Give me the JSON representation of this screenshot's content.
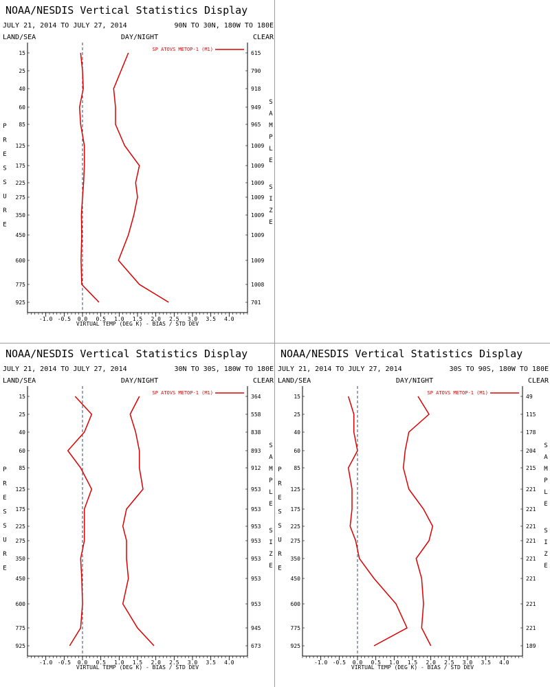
{
  "colors": {
    "series": "#dd0000",
    "axis": "#000000",
    "zero_line": "#3a4a66",
    "divider": "#9a9a9a"
  },
  "chart_data": [
    {
      "type": "line",
      "title": "NOAA/NESDIS Vertical Statistics Display",
      "date_range": "JULY 21, 2014 TO JULY 27, 2014",
      "region": "90N TO 30N, 180W TO 180E",
      "land_sea": "LAND/SEA",
      "day_night": "DAY/NIGHT",
      "clear": "CLEAR",
      "xlabel": "VIRTUAL TEMP (DEG K) - BIAS / STD DEV",
      "ylabel": "PRESSURE",
      "y2label": "SAMPLE SIZE",
      "legend": "SP ATOVS METOP-1 (M1)",
      "xlim": [
        -1.5,
        4.5
      ],
      "x_ticks": [
        "-1.0",
        "-0.5",
        "0.0",
        "0.5",
        "1.0",
        "1.5",
        "2.0",
        "2.5",
        "3.0",
        "3.5",
        "4.0"
      ],
      "pressure_levels": [
        "15",
        "25",
        "40",
        "60",
        "85",
        "125",
        "175",
        "225",
        "275",
        "350",
        "450",
        "600",
        "775",
        "925"
      ],
      "sample_sizes": [
        "615",
        "790",
        "918",
        "949",
        "965",
        "1009",
        "1009",
        "1009",
        "1009",
        "1009",
        "1009",
        "1009",
        "1008",
        "701"
      ],
      "bias": [
        -0.05,
        0.0,
        0.02,
        -0.08,
        -0.05,
        0.05,
        0.05,
        0.03,
        0.0,
        -0.03,
        -0.02,
        -0.04,
        -0.02,
        0.45
      ],
      "std_dev": [
        1.25,
        1.05,
        0.85,
        0.9,
        0.9,
        1.15,
        1.55,
        1.45,
        1.5,
        1.4,
        1.25,
        0.98,
        1.55,
        2.35
      ]
    },
    {
      "type": "line",
      "title": "NOAA/NESDIS Vertical Statistics Display",
      "date_range": "JULY 21, 2014 TO JULY 27, 2014",
      "region": "30N TO 30S, 180W TO 180E",
      "land_sea": "LAND/SEA",
      "day_night": "DAY/NIGHT",
      "clear": "CLEAR",
      "xlabel": "VIRTUAL TEMP (DEG K) - BIAS / STD DEV",
      "ylabel": "PRESSURE",
      "y2label": "SAMPLE SIZE",
      "legend": "SP ATOVS METOP-1 (M1)",
      "xlim": [
        -1.5,
        4.5
      ],
      "x_ticks": [
        "-1.0",
        "-0.5",
        "0.0",
        "0.5",
        "1.0",
        "1.5",
        "2.0",
        "2.5",
        "3.0",
        "3.5",
        "4.0"
      ],
      "pressure_levels": [
        "15",
        "25",
        "40",
        "60",
        "85",
        "125",
        "175",
        "225",
        "275",
        "350",
        "450",
        "600",
        "775",
        "925"
      ],
      "sample_sizes": [
        "364",
        "558",
        "838",
        "893",
        "912",
        "953",
        "953",
        "953",
        "953",
        "953",
        "953",
        "953",
        "945",
        "673"
      ],
      "bias": [
        -0.2,
        0.25,
        0.05,
        -0.4,
        -0.05,
        0.25,
        0.05,
        0.05,
        0.05,
        -0.05,
        -0.02,
        0.0,
        -0.05,
        -0.35
      ],
      "std_dev": [
        1.55,
        1.3,
        1.45,
        1.55,
        1.55,
        1.65,
        1.2,
        1.1,
        1.2,
        1.2,
        1.25,
        1.1,
        1.5,
        1.95
      ]
    },
    {
      "type": "line",
      "title": "NOAA/NESDIS Vertical Statistics Display",
      "date_range": "JULY 21, 2014 TO JULY 27, 2014",
      "region": "30S TO 90S, 180W TO 180E",
      "land_sea": "LAND/SEA",
      "day_night": "DAY/NIGHT",
      "clear": "CLEAR",
      "xlabel": "VIRTUAL TEMP (DEG K) - BIAS / STD DEV",
      "ylabel": "PRESSURE",
      "y2label": "SAMPLE SIZE",
      "legend": "SP ATOVS METOP-1 (M1)",
      "xlim": [
        -1.5,
        4.5
      ],
      "x_ticks": [
        "-1.0",
        "-0.5",
        "0.0",
        "0.5",
        "1.0",
        "1.5",
        "2.0",
        "2.5",
        "3.0",
        "3.5",
        "4.0"
      ],
      "pressure_levels": [
        "15",
        "25",
        "40",
        "60",
        "85",
        "125",
        "175",
        "225",
        "275",
        "350",
        "450",
        "600",
        "775",
        "925"
      ],
      "sample_sizes": [
        "49",
        "115",
        "178",
        "204",
        "215",
        "221",
        "221",
        "221",
        "221",
        "221",
        "221",
        "221",
        "221",
        "189"
      ],
      "bias": [
        -0.25,
        -0.1,
        -0.1,
        0.0,
        -0.25,
        -0.15,
        -0.15,
        -0.2,
        -0.05,
        0.05,
        0.45,
        1.05,
        1.35,
        0.45
      ],
      "std_dev": [
        1.65,
        1.95,
        1.4,
        1.3,
        1.25,
        1.4,
        1.8,
        2.05,
        1.95,
        1.6,
        1.75,
        1.8,
        1.75,
        2.0
      ]
    }
  ]
}
